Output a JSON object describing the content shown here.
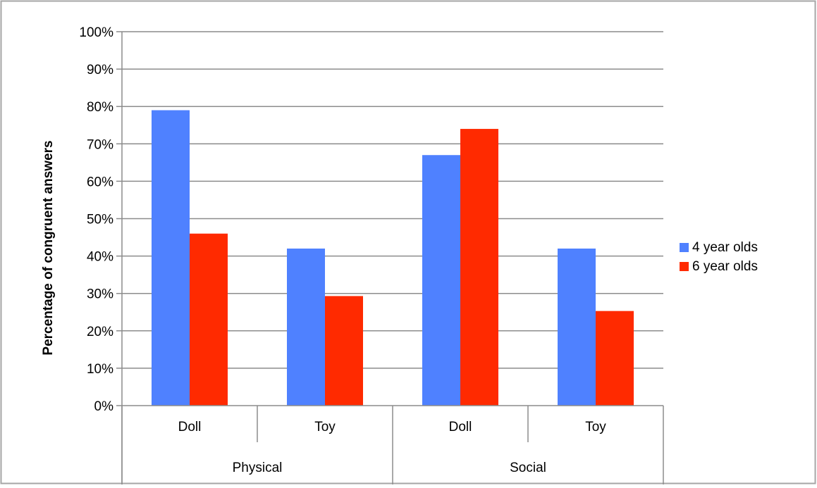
{
  "chart_data": {
    "type": "bar",
    "ylabel": "Percentage of congruent answers",
    "ylim": [
      0,
      100
    ],
    "yticks": [
      "0%",
      "10%",
      "20%",
      "30%",
      "40%",
      "50%",
      "60%",
      "70%",
      "80%",
      "90%",
      "100%"
    ],
    "y_tick_values": [
      0,
      10,
      20,
      30,
      40,
      50,
      60,
      70,
      80,
      90,
      100
    ],
    "grid": true,
    "legend_position": "right",
    "groups": [
      "Physical",
      "Social"
    ],
    "categories": [
      "Doll",
      "Toy",
      "Doll",
      "Toy"
    ],
    "category_groups": [
      0,
      0,
      1,
      1
    ],
    "series": [
      {
        "name": "4 year olds",
        "color": "#4F81FF",
        "values": [
          79,
          42,
          67,
          42
        ]
      },
      {
        "name": "6 year olds",
        "color": "#FF2A00",
        "values": [
          46,
          29.3,
          74,
          25.3
        ]
      }
    ]
  }
}
